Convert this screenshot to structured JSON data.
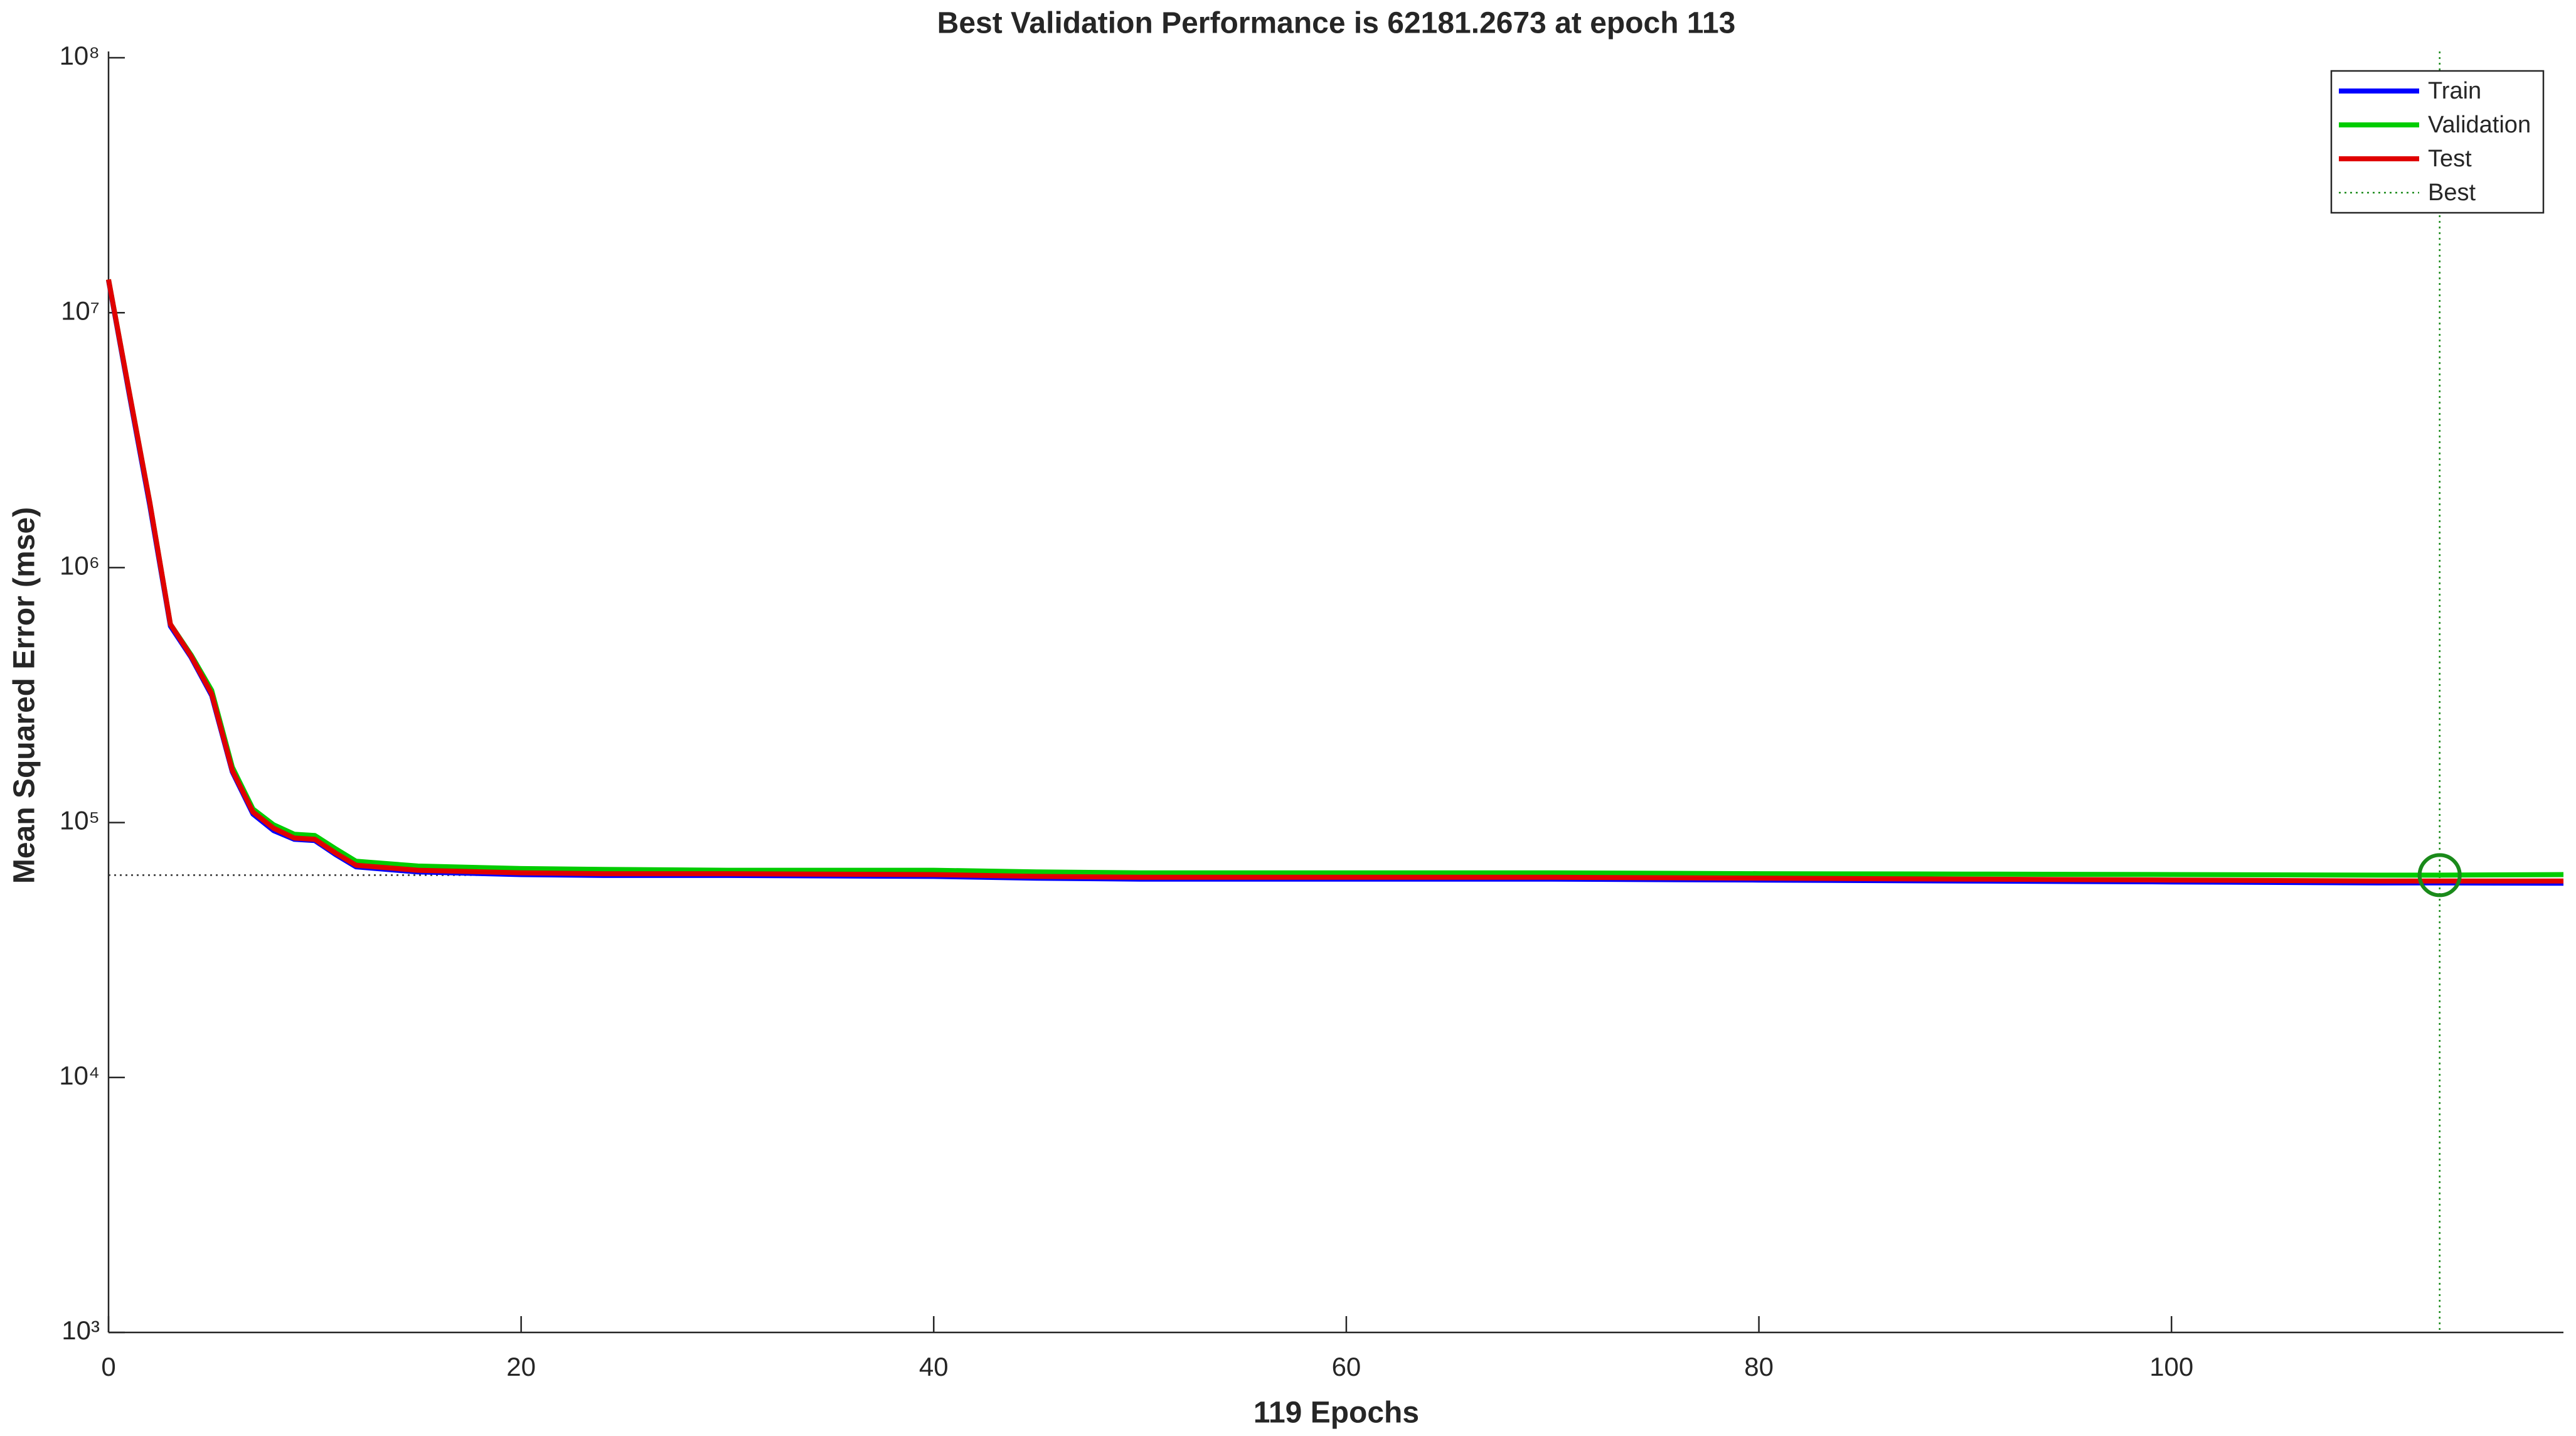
{
  "chart_data": {
    "type": "line",
    "title": "Best Validation Performance is 62181.2673 at epoch 113",
    "x_label": "119 Epochs",
    "y_label": "Mean Squared Error  (mse)",
    "log_y": true,
    "x": [
      0,
      1,
      2,
      3,
      4,
      5,
      6,
      7,
      8,
      9,
      10,
      11,
      12,
      15,
      20,
      24,
      30,
      40,
      45,
      50,
      60,
      70,
      80,
      90,
      100,
      110,
      113,
      119
    ],
    "series": [
      {
        "name": "Train",
        "color": "#0000ff",
        "values": [
          13400000,
          4800000,
          1750000,
          590000,
          445000,
          315000,
          158000,
          108000,
          93000,
          86000,
          85000,
          75000,
          67000,
          64000,
          62500,
          62000,
          62000,
          61500,
          60500,
          60000,
          60000,
          60000,
          59500,
          59000,
          58500,
          58000,
          58000,
          57800
        ]
      },
      {
        "name": "Validation",
        "color": "#00cc00",
        "values": [
          13500000,
          4900000,
          1800000,
          600000,
          455000,
          330000,
          165000,
          113000,
          98000,
          90000,
          89000,
          79000,
          70500,
          67500,
          66000,
          65500,
          65000,
          65000,
          64000,
          63500,
          63500,
          63500,
          63000,
          62800,
          62500,
          62200,
          62181.2673,
          62500
        ]
      },
      {
        "name": "Test",
        "color": "#e00000",
        "values": [
          13500000,
          4900000,
          1800000,
          600000,
          450000,
          320000,
          160000,
          110000,
          95000,
          87000,
          86000,
          76000,
          68000,
          65000,
          63500,
          63000,
          63000,
          62500,
          61500,
          61000,
          61000,
          61000,
          60500,
          60000,
          59500,
          59000,
          59000,
          59000
        ]
      }
    ],
    "best": {
      "name": "Best",
      "color": "#1a8a1a",
      "epoch": 113,
      "value": 62181.2673
    },
    "xlim": [
      0,
      119
    ],
    "xticks": [
      0,
      20,
      40,
      60,
      80,
      100
    ],
    "ylim": [
      1000,
      100000000
    ],
    "yticks": [
      {
        "value": 1000,
        "label": "10³"
      },
      {
        "value": 10000,
        "label": "10⁴"
      },
      {
        "value": 100000,
        "label": "10⁵"
      },
      {
        "value": 1000000,
        "label": "10⁶"
      },
      {
        "value": 10000000,
        "label": "10⁷"
      },
      {
        "value": 100000000,
        "label": "10⁸"
      }
    ],
    "legend": "top-right"
  }
}
